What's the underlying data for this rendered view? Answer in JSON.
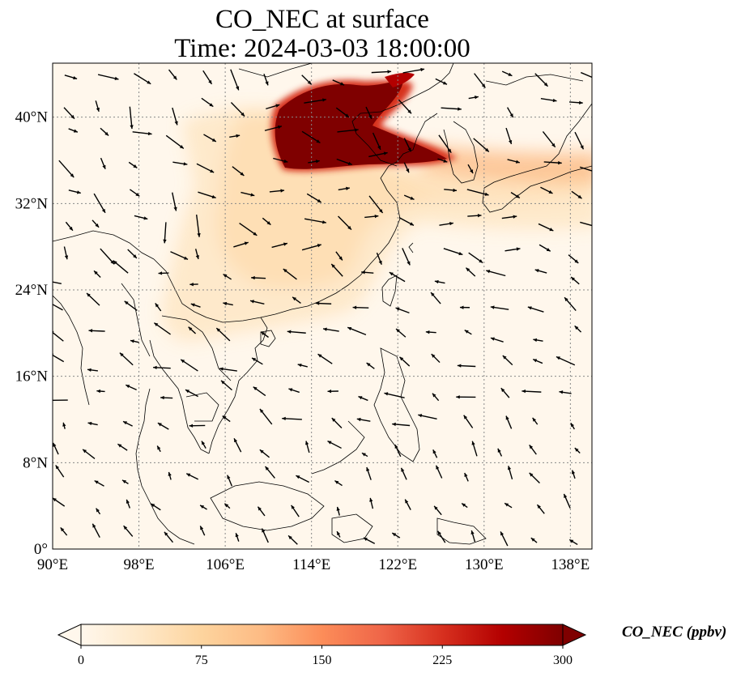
{
  "title_line1": "CO_NEC at surface",
  "title_line2": "Time: 2024-03-03 18:00:00",
  "map": {
    "lon_range": [
      90,
      140
    ],
    "lat_range": [
      0,
      45
    ],
    "lon_ticks": [
      "90°E",
      "98°E",
      "106°E",
      "114°E",
      "122°E",
      "130°E",
      "138°E"
    ],
    "lat_ticks": [
      "0°",
      "8°N",
      "16°N",
      "24°N",
      "32°N",
      "40°N"
    ],
    "lon_tick_values": [
      90,
      98,
      106,
      114,
      122,
      130,
      138
    ],
    "lat_tick_values": [
      0,
      8,
      16,
      24,
      32,
      40
    ],
    "gridlines": true,
    "wind_vectors": true
  },
  "colorbar": {
    "label": "CO_NEC (ppbv)",
    "ticks": [
      "0",
      "75",
      "150",
      "225",
      "300"
    ],
    "tick_values": [
      0,
      75,
      150,
      225,
      300
    ],
    "range": [
      0,
      300
    ],
    "colormap": "OrRd",
    "extend": "both",
    "colors": [
      "#fff7ec",
      "#fee8c8",
      "#fdd49e",
      "#fdbb84",
      "#fc8d59",
      "#ef6548",
      "#d7301f",
      "#b30000",
      "#7f0000"
    ]
  }
}
